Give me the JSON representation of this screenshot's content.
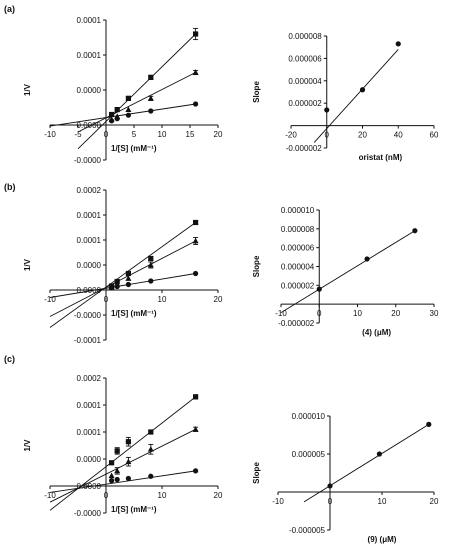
{
  "panel_labels": [
    "(a)",
    "(b)",
    "(c)"
  ],
  "chart_data": [
    {
      "type": "line",
      "panel": "(a)",
      "xlabel": "1/[S] (mM⁻¹)",
      "ylabel": "1/V",
      "xlim": [
        -10,
        20
      ],
      "ylim": [
        -5e-05,
        0.00015
      ],
      "x_ticks": [
        -10,
        -5,
        0,
        5,
        10,
        15,
        20
      ],
      "x_tick_labels": [
        "-10",
        "-5",
        "0",
        "5",
        "10",
        "15",
        "20"
      ],
      "y_ticks": [
        -5e-05,
        0,
        5e-05,
        0.0001,
        0.00015
      ],
      "y_tick_labels": [
        "-0.0000",
        "0.0000",
        "0.0000",
        "0.0001",
        "0.0001"
      ],
      "series": [
        {
          "marker": "square",
          "x": [
            1,
            2,
            4,
            8,
            16
          ],
          "y": [
            1.5e-05,
            2.2e-05,
            3.8e-05,
            6.8e-05,
            0.00013
          ],
          "yerr": [
            0,
            0,
            3e-06,
            3e-06,
            8e-06
          ]
        },
        {
          "marker": "triangle",
          "x": [
            1,
            2,
            4,
            8,
            16
          ],
          "y": [
            8e-06,
            1.2e-05,
            2.2e-05,
            3.8e-05,
            7.5e-05
          ],
          "yerr": [
            0,
            0,
            0,
            3e-06,
            3e-06
          ]
        },
        {
          "marker": "circle",
          "x": [
            1,
            2,
            4,
            8,
            16
          ],
          "y": [
            6e-06,
            9e-06,
            1.4e-05,
            2e-05,
            3e-05
          ],
          "yerr": [
            0,
            0,
            0,
            0,
            0
          ]
        }
      ],
      "fit_lines": [
        {
          "x": [
            -5,
            16
          ],
          "y": [
            -3.4e-05,
            0.00013
          ]
        },
        {
          "x": [
            -5,
            16
          ],
          "y": [
            -1e-05,
            7.5e-05
          ]
        },
        {
          "x": [
            -10,
            16
          ],
          "y": [
            -1.5e-06,
            3e-05
          ]
        }
      ]
    },
    {
      "type": "scatter",
      "panel": "(a)",
      "xlabel": "oristat (nM)",
      "ylabel": "Slope",
      "xlim": [
        -20,
        60
      ],
      "ylim": [
        -2e-06,
        8e-06
      ],
      "x_ticks": [
        -20,
        0,
        20,
        40,
        60
      ],
      "x_tick_labels": [
        "-20",
        "0",
        "20",
        "40",
        "60"
      ],
      "y_ticks": [
        -2e-06,
        2e-06,
        4e-06,
        6e-06,
        8e-06
      ],
      "y_tick_labels": [
        "-0.000002",
        "0.000002",
        "0.000004",
        "0.000006",
        "0.000008"
      ],
      "series": [
        {
          "marker": "circle",
          "x": [
            0,
            20,
            40
          ],
          "y": [
            1.4e-06,
            3.2e-06,
            7.3e-06
          ]
        }
      ],
      "fit_lines": [
        {
          "x": [
            -7,
            40
          ],
          "y": [
            -1.5e-06,
            6.8e-06
          ]
        }
      ]
    },
    {
      "type": "line",
      "panel": "(b)",
      "xlabel": "1/[S] (mM⁻¹)",
      "ylabel": "1/V",
      "xlim": [
        -10,
        20
      ],
      "ylim": [
        -0.0001,
        0.0002
      ],
      "x_ticks": [
        -10,
        0,
        10,
        20
      ],
      "x_tick_labels": [
        "-10",
        "0",
        "10",
        "20"
      ],
      "y_ticks": [
        -0.0001,
        -5e-05,
        0,
        5e-05,
        0.0001,
        0.00015,
        0.0002
      ],
      "y_tick_labels": [
        "-0.0001",
        "-0.0000",
        "0.0000",
        "0.0000",
        "0.0001",
        "0.0001",
        "0.0002"
      ],
      "series": [
        {
          "marker": "square",
          "x": [
            1,
            2,
            4,
            8,
            16
          ],
          "y": [
            8e-06,
            1.7e-05,
            3.3e-05,
            6.3e-05,
            0.000135
          ],
          "yerr": [
            0,
            0,
            0,
            4e-06,
            4e-06
          ]
        },
        {
          "marker": "triangle",
          "x": [
            1,
            2,
            4,
            8,
            16
          ],
          "y": [
            6e-06,
            1.2e-05,
            2.3e-05,
            5e-05,
            9.8e-05
          ],
          "yerr": [
            0,
            0,
            0,
            6e-06,
            7e-06
          ]
        },
        {
          "marker": "circle",
          "x": [
            1,
            2,
            4,
            8,
            16
          ],
          "y": [
            4e-06,
            7e-06,
            1.1e-05,
            1.8e-05,
            3.3e-05
          ],
          "yerr": [
            0,
            0,
            0,
            0,
            0
          ]
        }
      ],
      "fit_lines": [
        {
          "x": [
            -10,
            16
          ],
          "y": [
            -7.5e-05,
            0.000135
          ]
        },
        {
          "x": [
            -10,
            16
          ],
          "y": [
            -5.3e-05,
            9.8e-05
          ]
        },
        {
          "x": [
            -10,
            16
          ],
          "y": [
            -1.5e-05,
            3.3e-05
          ]
        }
      ]
    },
    {
      "type": "scatter",
      "panel": "(b)",
      "xlabel": "(4) (μM)",
      "ylabel": "Slope",
      "xlim": [
        -10,
        30
      ],
      "ylim": [
        -2e-06,
        1e-05
      ],
      "x_ticks": [
        -10,
        0,
        10,
        20,
        30
      ],
      "x_tick_labels": [
        "-10",
        "0",
        "10",
        "20",
        "30"
      ],
      "y_ticks": [
        -2e-06,
        2e-06,
        4e-06,
        6e-06,
        8e-06,
        1e-05
      ],
      "y_tick_labels": [
        "-0.000002",
        "0.000002",
        "0.000004",
        "0.000006",
        "0.000008",
        "0.000010"
      ],
      "series": [
        {
          "marker": "circle",
          "x": [
            0,
            12.5,
            25
          ],
          "y": [
            1.6e-06,
            4.8e-06,
            7.8e-06
          ]
        }
      ],
      "fit_lines": [
        {
          "x": [
            -10,
            25
          ],
          "y": [
            -9e-07,
            7.8e-06
          ]
        }
      ]
    },
    {
      "type": "line",
      "panel": "(c)",
      "xlabel": "1/[S] (mM⁻¹)",
      "ylabel": "1/V",
      "xlim": [
        -10,
        20
      ],
      "ylim": [
        -5e-05,
        0.0002
      ],
      "x_ticks": [
        -10,
        0,
        10,
        20
      ],
      "x_tick_labels": [
        "-10",
        "0",
        "10",
        "20"
      ],
      "y_ticks": [
        -5e-05,
        0,
        5e-05,
        0.0001,
        0.00015,
        0.0002
      ],
      "y_tick_labels": [
        "-0.0000",
        "0.0000",
        "0.0000",
        "0.0001",
        "0.0001",
        "0.0002"
      ],
      "series": [
        {
          "marker": "square",
          "x": [
            1,
            2,
            4,
            8,
            16
          ],
          "y": [
            4.3e-05,
            6.5e-05,
            8.2e-05,
            0.0001,
            0.000165
          ],
          "yerr": [
            0,
            6e-06,
            8e-06,
            3e-06,
            4e-06
          ]
        },
        {
          "marker": "triangle",
          "x": [
            1,
            2,
            4,
            8,
            16
          ],
          "y": [
            1.9e-05,
            2.8e-05,
            4.5e-05,
            6.8e-05,
            0.000105
          ],
          "yerr": [
            0,
            6e-06,
            8e-06,
            9e-06,
            4e-06
          ]
        },
        {
          "marker": "circle",
          "x": [
            1,
            2,
            4,
            8,
            16
          ],
          "y": [
            1e-05,
            1.2e-05,
            1.4e-05,
            1.8e-05,
            2.8e-05
          ],
          "yerr": [
            0,
            0,
            0,
            0,
            0
          ]
        }
      ],
      "fit_lines": [
        {
          "x": [
            -10,
            16
          ],
          "y": [
            -4.5e-05,
            0.000165
          ]
        },
        {
          "x": [
            -10,
            16
          ],
          "y": [
            -3e-05,
            0.000105
          ]
        },
        {
          "x": [
            -10,
            16
          ],
          "y": [
            -1.2e-05,
            2.8e-05
          ]
        }
      ]
    },
    {
      "type": "scatter",
      "panel": "(c)",
      "xlabel": "(9) (μM)",
      "ylabel": "Slope",
      "xlim": [
        -10,
        20
      ],
      "ylim": [
        -5e-06,
        1e-05
      ],
      "x_ticks": [
        -10,
        0,
        10,
        20
      ],
      "x_tick_labels": [
        "-10",
        "0",
        "10",
        "20"
      ],
      "y_ticks": [
        -5e-06,
        5e-06,
        1e-05
      ],
      "y_tick_labels": [
        "-0.000005",
        "0.000005",
        "0.000010"
      ],
      "series": [
        {
          "marker": "circle",
          "x": [
            0,
            9.5,
            19
          ],
          "y": [
            8e-07,
            5e-06,
            8.9e-06
          ]
        }
      ],
      "fit_lines": [
        {
          "x": [
            -5,
            19
          ],
          "y": [
            -1.3e-06,
            8.9e-06
          ]
        }
      ]
    }
  ]
}
